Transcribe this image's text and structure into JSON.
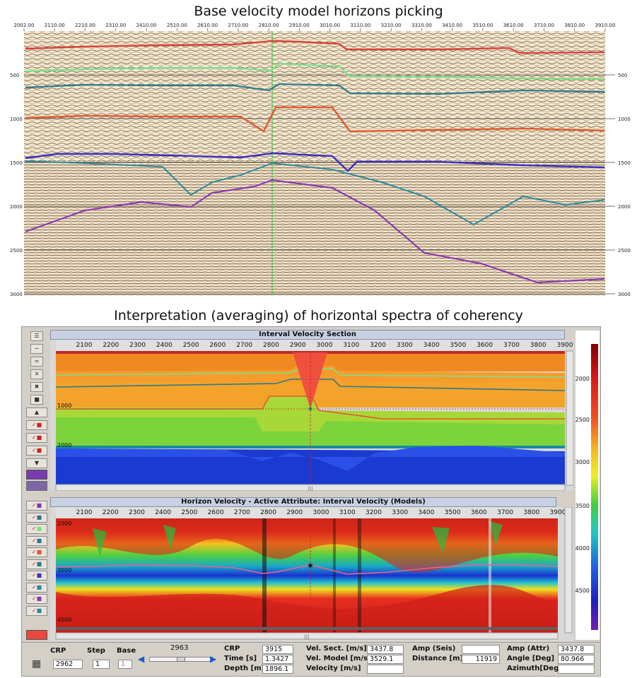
{
  "titles": {
    "top": "Base velocity model horizons picking",
    "bottom": "Interpretation (averaging) of horizontal spectra of coherency"
  },
  "seismic": {
    "x_ticks": [
      "2002.00",
      "2110.00",
      "2210.00",
      "2310.00",
      "2410.00",
      "2510.00",
      "2610.00",
      "2710.00",
      "2810.00",
      "2910.00",
      "3010.00",
      "3110.00",
      "3210.00",
      "3310.00",
      "3410.00",
      "3510.00",
      "3610.00",
      "3710.00",
      "3810.00",
      "3910.00"
    ],
    "y_ticks": [
      "500",
      "1000",
      "1500",
      "2000",
      "2500",
      "3000"
    ],
    "horizon_colors": [
      "#d8443a",
      "#7ee08a",
      "#2a7a8a",
      "#e05a30",
      "#3a2fc0",
      "#2a8a9a",
      "#8a3ab0"
    ]
  },
  "app": {
    "interval_panel_title": "Interval Velocity Section",
    "horizon_panel_title": "Horizon Velocity - Active Attribute: Interval Velocity (Models)",
    "x_ticks": [
      "2100",
      "2200",
      "2300",
      "2400",
      "2500",
      "2600",
      "2700",
      "2800",
      "2900",
      "3000",
      "3100",
      "3200",
      "3300",
      "3400",
      "3500",
      "3600",
      "3700",
      "3800",
      "3900"
    ],
    "upper_y_ticks": [
      "1000",
      "2000"
    ],
    "lower_y_ticks": [
      "2000",
      "3000",
      "4000"
    ],
    "colorbar_ticks": [
      "2000",
      "2500",
      "3000",
      "3500",
      "4000",
      "4500"
    ],
    "toolbar_icons": [
      "layers-icon",
      "horizon-pick-icon",
      "horizon-edit-icon",
      "delete-icon",
      "delete-all-icon",
      "palette-icon"
    ],
    "status": {
      "crp_label": "CRP",
      "crp_value": "2962",
      "step_label": "Step",
      "step_value": "1",
      "base_label": "Base",
      "base_value": "1",
      "slider_value": "2963",
      "crp2_label": "CRP",
      "crp2_value": "3915",
      "time_label": "Time [s]",
      "time_value": "1.3427",
      "depth_label": "Depth [m]",
      "depth_value": "1896.1",
      "velsect_label": "Vel. Sect. [m/s]",
      "velsect_value": "3437.8",
      "velmodel_label": "Vel. Model [m/s]",
      "velmodel_value": "3529.1",
      "velocity_label": "Velocity [m/s]",
      "velocity_value": "",
      "ampseis_label": "Amp (Seis)",
      "ampseis_value": "",
      "distance_label": "Distance [m]",
      "distance_value": "11919",
      "ampattr_label": "Amp (Attr)",
      "ampattr_value": "3437.8",
      "angle_label": "Angle [Deg]",
      "angle_value": "80.966",
      "azimuth_label": "Azimuth[Deg]",
      "azimuth_value": ""
    }
  }
}
